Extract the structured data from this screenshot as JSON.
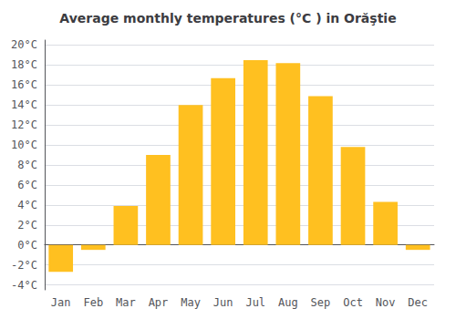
{
  "chart_data": {
    "type": "bar",
    "title": "Average monthly temperatures (°C ) in Orăştie",
    "categories": [
      "Jan",
      "Feb",
      "Mar",
      "Apr",
      "May",
      "Jun",
      "Jul",
      "Aug",
      "Sep",
      "Oct",
      "Nov",
      "Dec"
    ],
    "values": [
      -2.7,
      -0.5,
      3.9,
      9.0,
      14.0,
      16.7,
      18.5,
      18.2,
      14.9,
      9.8,
      4.3,
      -0.5
    ],
    "color": "#FFC020",
    "ylim": [
      -4.5,
      20.5
    ],
    "yticks": [
      {
        "value": -4,
        "label": "-4°C"
      },
      {
        "value": -2,
        "label": "-2°C"
      },
      {
        "value": 0,
        "label": "0°C"
      },
      {
        "value": 2,
        "label": "2°C"
      },
      {
        "value": 4,
        "label": "4°C"
      },
      {
        "value": 6,
        "label": "6°C"
      },
      {
        "value": 8,
        "label": "8°C"
      },
      {
        "value": 10,
        "label": "10°C"
      },
      {
        "value": 12,
        "label": "12°C"
      },
      {
        "value": 14,
        "label": "14°C"
      },
      {
        "value": 16,
        "label": "16°C"
      },
      {
        "value": 18,
        "label": "18°C"
      },
      {
        "value": 20,
        "label": "20°C"
      }
    ],
    "grid": true
  }
}
